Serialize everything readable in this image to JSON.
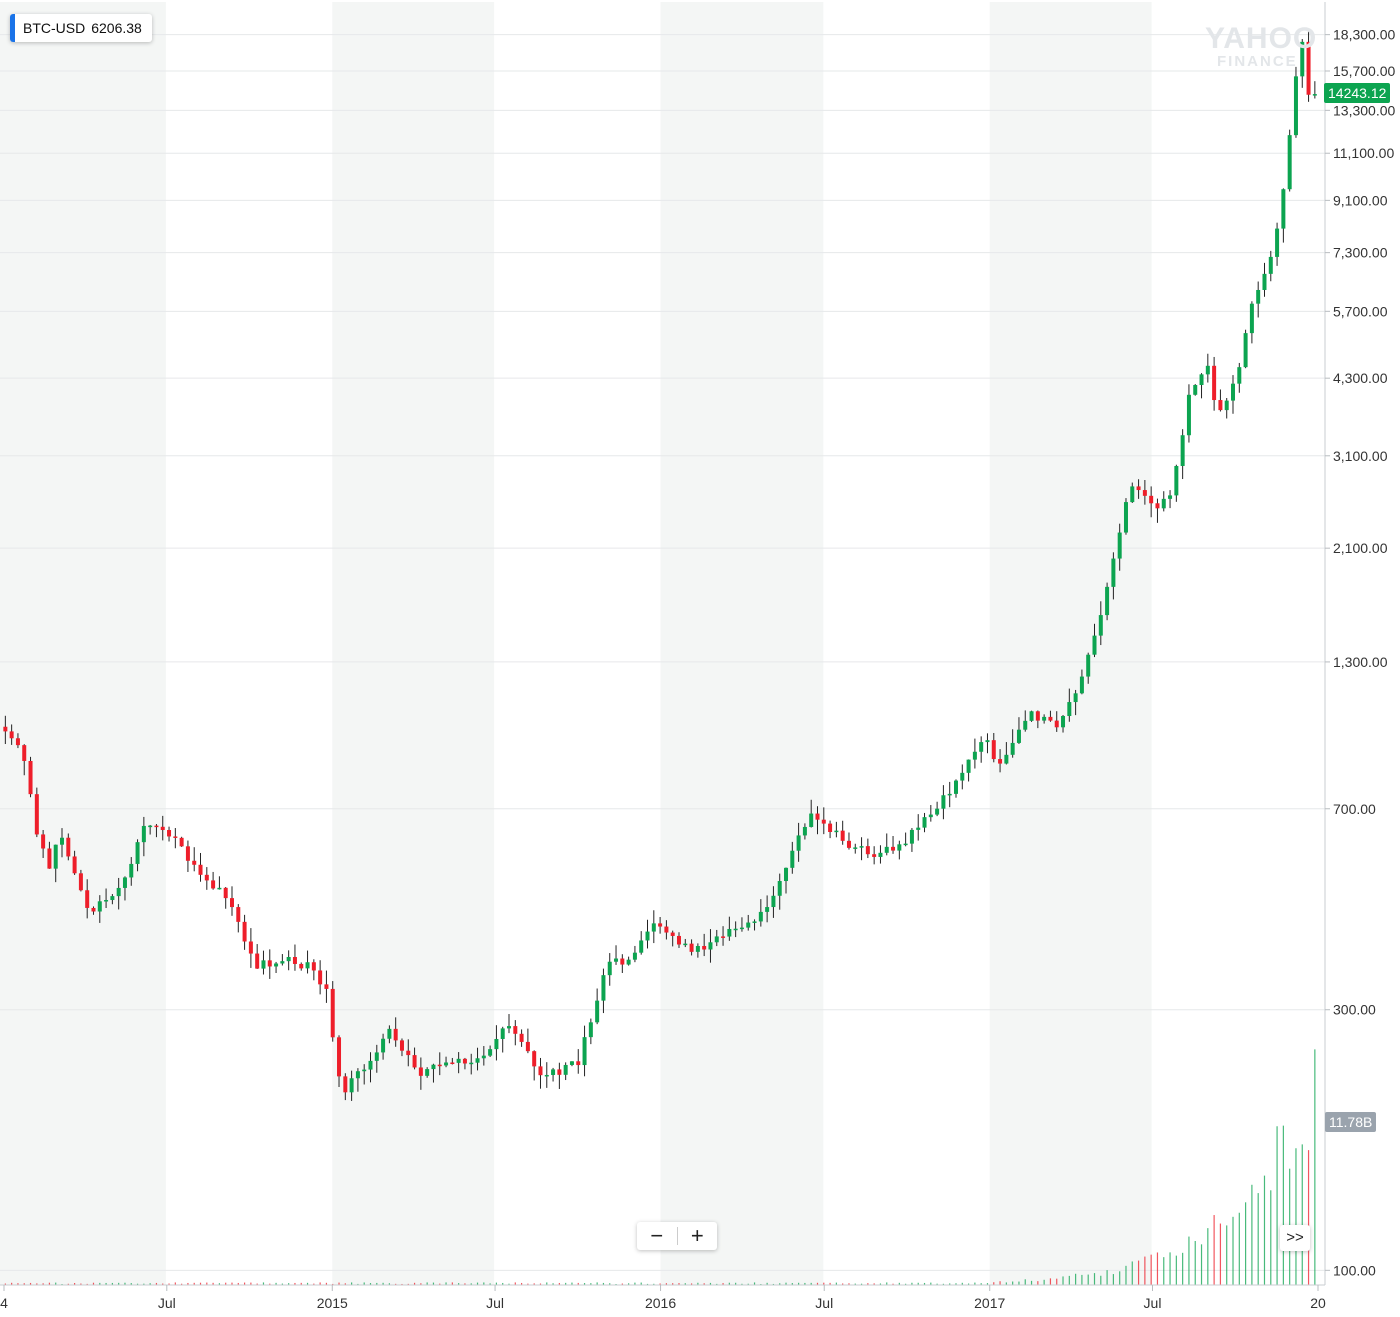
{
  "legend": {
    "symbol": "BTC-USD",
    "value": "6206.38"
  },
  "current_price_label": "14243.12",
  "current_volume_label": "11.78B",
  "watermark": {
    "line1": "YAHOO",
    "line2": "FINANCE"
  },
  "zoom": {
    "out_label": "−",
    "in_label": "+"
  },
  "scroll_label": ">>",
  "colors": {
    "up": "#0ca450",
    "down": "#ee1e2a",
    "price_tag": "#0ca450",
    "volume_tag": "#9aa3ad",
    "shade": "#f4f6f5",
    "legend_swatch": "#1a73e8"
  },
  "chart_data": {
    "type": "candlestick",
    "title": "",
    "xlabel": "",
    "ylabel": "",
    "y_scale": "log",
    "ylim": [
      94,
      21000
    ],
    "y_ticks": [
      {
        "value": 18300,
        "label": "18,300.00"
      },
      {
        "value": 15700,
        "label": "15,700.00"
      },
      {
        "value": 13300,
        "label": "13,300.00"
      },
      {
        "value": 11100,
        "label": "11,100.00"
      },
      {
        "value": 9100,
        "label": "9,100.00"
      },
      {
        "value": 7300,
        "label": "7,300.00"
      },
      {
        "value": 5700,
        "label": "5,700.00"
      },
      {
        "value": 4300,
        "label": "4,300.00"
      },
      {
        "value": 3100,
        "label": "3,100.00"
      },
      {
        "value": 2100,
        "label": "2,100.00"
      },
      {
        "value": 1300,
        "label": "1,300.00"
      },
      {
        "value": 700,
        "label": "700.00"
      },
      {
        "value": 300,
        "label": "300.00"
      },
      {
        "value": 100,
        "label": "100.00"
      }
    ],
    "x_ticks": [
      {
        "date": "2014-01-01",
        "label": "4"
      },
      {
        "date": "2014-07-01",
        "label": "Jul"
      },
      {
        "date": "2015-01-01",
        "label": "2015"
      },
      {
        "date": "2015-07-01",
        "label": "Jul"
      },
      {
        "date": "2016-01-01",
        "label": "2016"
      },
      {
        "date": "2016-07-01",
        "label": "Jul"
      },
      {
        "date": "2017-01-01",
        "label": "2017"
      },
      {
        "date": "2017-07-01",
        "label": "Jul"
      },
      {
        "date": "2018-01-01",
        "label": "20"
      }
    ],
    "shaded_periods": [
      [
        "2013-12-01",
        "2014-06-30"
      ],
      [
        "2015-01-01",
        "2015-06-30"
      ],
      [
        "2016-01-01",
        "2016-06-30"
      ],
      [
        "2017-01-01",
        "2017-06-30"
      ]
    ],
    "price_key": [
      [
        "2013-12-27",
        1000
      ],
      [
        "2014-01-25",
        900
      ],
      [
        "2014-02-10",
        640
      ],
      [
        "2014-02-24",
        550
      ],
      [
        "2014-03-08",
        630
      ],
      [
        "2014-04-10",
        450
      ],
      [
        "2014-05-20",
        520
      ],
      [
        "2014-06-10",
        650
      ],
      [
        "2014-07-10",
        620
      ],
      [
        "2014-08-15",
        520
      ],
      [
        "2014-09-10",
        480
      ],
      [
        "2014-10-10",
        360
      ],
      [
        "2014-11-10",
        370
      ],
      [
        "2014-12-10",
        360
      ],
      [
        "2014-12-30",
        320
      ],
      [
        "2015-01-14",
        210
      ],
      [
        "2015-02-15",
        240
      ],
      [
        "2015-03-10",
        275
      ],
      [
        "2015-04-10",
        230
      ],
      [
        "2015-05-15",
        238
      ],
      [
        "2015-06-20",
        245
      ],
      [
        "2015-07-20",
        285
      ],
      [
        "2015-08-25",
        225
      ],
      [
        "2015-10-05",
        240
      ],
      [
        "2015-11-05",
        360
      ],
      [
        "2015-12-01",
        375
      ],
      [
        "2015-12-31",
        430
      ],
      [
        "2016-02-10",
        380
      ],
      [
        "2016-03-15",
        415
      ],
      [
        "2016-05-01",
        450
      ],
      [
        "2016-06-18",
        690
      ],
      [
        "2016-07-30",
        605
      ],
      [
        "2016-08-30",
        575
      ],
      [
        "2016-10-01",
        610
      ],
      [
        "2016-11-15",
        730
      ],
      [
        "2016-12-31",
        955
      ],
      [
        "2017-01-12",
        830
      ],
      [
        "2017-02-20",
        1050
      ],
      [
        "2017-03-20",
        980
      ],
      [
        "2017-04-15",
        1200
      ],
      [
        "2017-05-15",
        1750
      ],
      [
        "2017-06-10",
        2800
      ],
      [
        "2017-07-10",
        2500
      ],
      [
        "2017-07-25",
        2600
      ],
      [
        "2017-08-15",
        4100
      ],
      [
        "2017-09-05",
        4500
      ],
      [
        "2017-09-15",
        3600
      ],
      [
        "2017-10-05",
        4300
      ],
      [
        "2017-10-25",
        6000
      ],
      [
        "2017-11-15",
        7400
      ],
      [
        "2017-11-30",
        10000
      ],
      [
        "2017-12-10",
        15000
      ],
      [
        "2017-12-17",
        18500
      ],
      [
        "2017-12-22",
        14200
      ],
      [
        "2017-12-30",
        14243
      ]
    ],
    "volume_note": "weekly volume bars, max ≈ 16B in December 2017; latest 11.78B"
  }
}
